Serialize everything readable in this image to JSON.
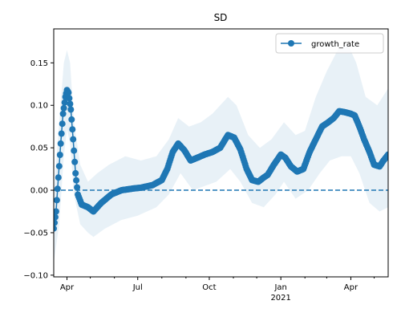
{
  "chart_data": {
    "type": "line",
    "title": "SD",
    "xlabel": "",
    "ylabel": "",
    "x_axis": {
      "type": "date",
      "range": [
        "2020-03-15",
        "2021-05-19"
      ],
      "major_ticks": [
        {
          "date": "2020-04-01",
          "label": "Apr",
          "sublabel": ""
        },
        {
          "date": "2020-07-01",
          "label": "Jul",
          "sublabel": ""
        },
        {
          "date": "2020-10-01",
          "label": "Oct",
          "sublabel": ""
        },
        {
          "date": "2021-01-01",
          "label": "Jan",
          "sublabel": "2021"
        },
        {
          "date": "2021-04-01",
          "label": "Apr",
          "sublabel": ""
        }
      ],
      "minor_ticks": [
        "2020-05-01",
        "2020-06-01",
        "2020-08-01",
        "2020-09-01",
        "2020-11-01",
        "2020-12-01",
        "2021-02-01",
        "2021-03-01",
        "2021-05-01"
      ]
    },
    "y_axis": {
      "range": [
        -0.102,
        0.19
      ],
      "ticks": [
        -0.1,
        -0.05,
        0.0,
        0.05,
        0.1,
        0.15
      ],
      "tick_labels": [
        "−0.10",
        "−0.05",
        "0.00",
        "0.05",
        "0.10",
        "0.15"
      ]
    },
    "grid": false,
    "legend": {
      "position": "upper right",
      "entries": [
        "growth_rate"
      ]
    },
    "reference_line": {
      "y": 0.0,
      "style": "dashed",
      "color": "#1f77b4"
    },
    "colors": {
      "series": "#1f77b4",
      "band": "#1f77b4",
      "band_opacity": 0.1
    },
    "series": [
      {
        "name": "growth_rate",
        "marker": "circle",
        "points": [
          [
            "2020-03-15",
            -0.045
          ],
          [
            "2020-03-18",
            -0.025
          ],
          [
            "2020-03-21",
            0.015
          ],
          [
            "2020-03-24",
            0.055
          ],
          [
            "2020-03-27",
            0.09
          ],
          [
            "2020-03-30",
            0.11
          ],
          [
            "2020-04-01",
            0.118
          ],
          [
            "2020-04-03",
            0.115
          ],
          [
            "2020-04-06",
            0.095
          ],
          [
            "2020-04-09",
            0.06
          ],
          [
            "2020-04-12",
            0.02
          ],
          [
            "2020-04-15",
            -0.005
          ],
          [
            "2020-04-20",
            -0.017
          ],
          [
            "2020-04-28",
            -0.02
          ],
          [
            "2020-05-05",
            -0.025
          ],
          [
            "2020-05-15",
            -0.015
          ],
          [
            "2020-05-28",
            -0.005
          ],
          [
            "2020-06-10",
            0.0
          ],
          [
            "2020-06-25",
            0.002
          ],
          [
            "2020-07-05",
            0.003
          ],
          [
            "2020-07-20",
            0.006
          ],
          [
            "2020-08-01",
            0.012
          ],
          [
            "2020-08-08",
            0.025
          ],
          [
            "2020-08-15",
            0.045
          ],
          [
            "2020-08-22",
            0.055
          ],
          [
            "2020-08-30",
            0.047
          ],
          [
            "2020-09-07",
            0.035
          ],
          [
            "2020-09-15",
            0.038
          ],
          [
            "2020-09-25",
            0.042
          ],
          [
            "2020-10-05",
            0.045
          ],
          [
            "2020-10-15",
            0.05
          ],
          [
            "2020-10-25",
            0.065
          ],
          [
            "2020-11-02",
            0.062
          ],
          [
            "2020-11-10",
            0.048
          ],
          [
            "2020-11-18",
            0.025
          ],
          [
            "2020-11-25",
            0.012
          ],
          [
            "2020-12-03",
            0.01
          ],
          [
            "2020-12-10",
            0.015
          ],
          [
            "2020-12-15",
            0.018
          ],
          [
            "2020-12-23",
            0.03
          ],
          [
            "2021-01-01",
            0.042
          ],
          [
            "2021-01-07",
            0.038
          ],
          [
            "2021-01-14",
            0.028
          ],
          [
            "2021-01-22",
            0.022
          ],
          [
            "2021-01-30",
            0.025
          ],
          [
            "2021-02-07",
            0.045
          ],
          [
            "2021-02-15",
            0.06
          ],
          [
            "2021-02-23",
            0.075
          ],
          [
            "2021-03-03",
            0.08
          ],
          [
            "2021-03-10",
            0.085
          ],
          [
            "2021-03-17",
            0.093
          ],
          [
            "2021-03-24",
            0.092
          ],
          [
            "2021-04-01",
            0.09
          ],
          [
            "2021-04-06",
            0.088
          ],
          [
            "2021-04-12",
            0.075
          ],
          [
            "2021-04-18",
            0.06
          ],
          [
            "2021-04-25",
            0.045
          ],
          [
            "2021-05-01",
            0.03
          ],
          [
            "2021-05-08",
            0.028
          ],
          [
            "2021-05-13",
            0.035
          ],
          [
            "2021-05-19",
            0.042
          ]
        ]
      }
    ],
    "band": {
      "upper": [
        [
          "2020-03-15",
          -0.005
        ],
        [
          "2020-03-22",
          0.08
        ],
        [
          "2020-03-28",
          0.15
        ],
        [
          "2020-04-01",
          0.165
        ],
        [
          "2020-04-05",
          0.15
        ],
        [
          "2020-04-10",
          0.08
        ],
        [
          "2020-04-18",
          0.03
        ],
        [
          "2020-04-28",
          0.01
        ],
        [
          "2020-05-10",
          0.02
        ],
        [
          "2020-05-25",
          0.03
        ],
        [
          "2020-06-15",
          0.04
        ],
        [
          "2020-07-05",
          0.035
        ],
        [
          "2020-07-25",
          0.04
        ],
        [
          "2020-08-10",
          0.06
        ],
        [
          "2020-08-22",
          0.085
        ],
        [
          "2020-09-05",
          0.075
        ],
        [
          "2020-09-20",
          0.08
        ],
        [
          "2020-10-05",
          0.09
        ],
        [
          "2020-10-25",
          0.11
        ],
        [
          "2020-11-05",
          0.1
        ],
        [
          "2020-11-20",
          0.065
        ],
        [
          "2020-12-05",
          0.05
        ],
        [
          "2020-12-20",
          0.06
        ],
        [
          "2021-01-05",
          0.08
        ],
        [
          "2021-01-20",
          0.065
        ],
        [
          "2021-02-01",
          0.07
        ],
        [
          "2021-02-15",
          0.11
        ],
        [
          "2021-03-01",
          0.14
        ],
        [
          "2021-03-15",
          0.165
        ],
        [
          "2021-03-28",
          0.172
        ],
        [
          "2021-04-08",
          0.15
        ],
        [
          "2021-04-20",
          0.11
        ],
        [
          "2021-05-05",
          0.1
        ],
        [
          "2021-05-19",
          0.12
        ]
      ],
      "lower": [
        [
          "2020-03-15",
          -0.085
        ],
        [
          "2020-03-22",
          -0.04
        ],
        [
          "2020-03-28",
          0.04
        ],
        [
          "2020-04-01",
          0.072
        ],
        [
          "2020-04-05",
          0.055
        ],
        [
          "2020-04-10",
          -0.005
        ],
        [
          "2020-04-18",
          -0.04
        ],
        [
          "2020-04-28",
          -0.05
        ],
        [
          "2020-05-05",
          -0.055
        ],
        [
          "2020-05-20",
          -0.045
        ],
        [
          "2020-06-10",
          -0.035
        ],
        [
          "2020-07-01",
          -0.03
        ],
        [
          "2020-07-25",
          -0.02
        ],
        [
          "2020-08-10",
          -0.005
        ],
        [
          "2020-08-25",
          0.02
        ],
        [
          "2020-09-10",
          0.0
        ],
        [
          "2020-09-25",
          0.005
        ],
        [
          "2020-10-10",
          0.01
        ],
        [
          "2020-10-28",
          0.025
        ],
        [
          "2020-11-10",
          0.01
        ],
        [
          "2020-11-25",
          -0.015
        ],
        [
          "2020-12-10",
          -0.02
        ],
        [
          "2020-12-25",
          -0.005
        ],
        [
          "2021-01-05",
          0.01
        ],
        [
          "2021-01-20",
          -0.01
        ],
        [
          "2021-02-05",
          0.0
        ],
        [
          "2021-02-20",
          0.02
        ],
        [
          "2021-03-05",
          0.035
        ],
        [
          "2021-03-20",
          0.04
        ],
        [
          "2021-04-01",
          0.04
        ],
        [
          "2021-04-12",
          0.02
        ],
        [
          "2021-04-25",
          -0.015
        ],
        [
          "2021-05-08",
          -0.025
        ],
        [
          "2021-05-19",
          -0.02
        ]
      ]
    }
  }
}
